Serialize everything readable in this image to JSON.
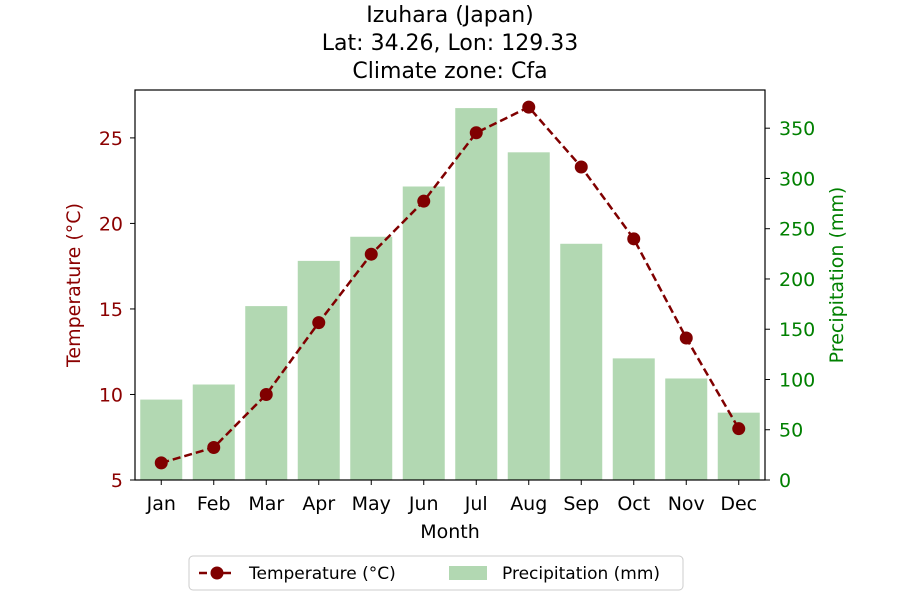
{
  "chart_data": {
    "type": "bar",
    "title_lines": [
      "Izuhara (Japan)",
      "Lat: 34.26, Lon: 129.33",
      "Climate zone: Cfa"
    ],
    "xlabel": "Month",
    "ylabel_left": "Temperature (°C)",
    "ylabel_right": "Precipitation (mm)",
    "categories": [
      "Jan",
      "Feb",
      "Mar",
      "Apr",
      "May",
      "Jun",
      "Jul",
      "Aug",
      "Sep",
      "Oct",
      "Nov",
      "Dec"
    ],
    "series": [
      {
        "name": "Temperature (°C)",
        "type": "line",
        "axis": "left",
        "color": "#800000",
        "values": [
          6.0,
          6.9,
          10.0,
          14.2,
          18.2,
          21.3,
          25.3,
          26.8,
          23.3,
          19.1,
          13.3,
          8.0
        ]
      },
      {
        "name": "Precipitation (mm)",
        "type": "bar",
        "axis": "right",
        "color": "#b2d8b2",
        "values": [
          80,
          95,
          173,
          218,
          242,
          292,
          370,
          326,
          235,
          121,
          101,
          67
        ]
      }
    ],
    "ylim_left": [
      5,
      27.8
    ],
    "ylim_right": [
      0,
      388
    ],
    "yticks_left": [
      5,
      10,
      15,
      20,
      25
    ],
    "yticks_right": [
      0,
      50,
      100,
      150,
      200,
      250,
      300,
      350
    ],
    "left_axis_color": "#8b0000",
    "right_axis_color": "#008000",
    "legend": "bottom-center",
    "grid": false
  }
}
